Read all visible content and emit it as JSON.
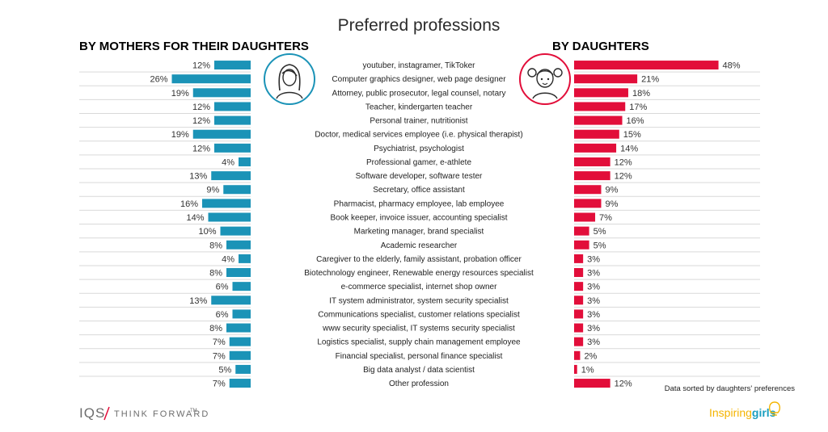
{
  "colors": {
    "mothers": "#1b93b7",
    "daughters": "#e20e3a",
    "divider": "#d9d9d9",
    "text": "#333333"
  },
  "icons": {
    "mother_icon": "woman-face-icon",
    "daughter_icon": "girl-face-icon",
    "inspiring_icon": "lightbulb-icon"
  },
  "logos": {
    "iqs": "IQS",
    "think_forward": "THINK FORWARD",
    "tm": "TM",
    "inspiring": "Inspiring",
    "girls": "girls"
  },
  "chart_data": {
    "type": "bar",
    "title": "Preferred professions",
    "note": "Data sorted by daughters' preferences",
    "unit": "%",
    "categories": [
      "youtuber, instagramer, TikToker",
      "Computer graphics designer, web page designer",
      "Attorney, public prosecutor, legal counsel, notary",
      "Teacher, kindergarten teacher",
      "Personal trainer, nutritionist",
      "Doctor, medical services employee (i.e. physical therapist)",
      "Psychiatrist, psychologist",
      "Professional gamer, e-athlete",
      "Software developer, software tester",
      "Secretary, office assistant",
      "Pharmacist, pharmacy employee, lab employee",
      "Book keeper, invoice issuer, accounting specialist",
      "Marketing manager, brand specialist",
      "Academic researcher",
      "Caregiver to the elderly, family assistant, probation officer",
      "Biotechnology engineer, Renewable energy resources specialist",
      "e-commerce specialist, internet shop owner",
      "IT system administrator, system security specialist",
      "Communications specialist, customer relations specialist",
      "www security specialist, IT systems security specialist",
      "Logistics specialist, supply chain management employee",
      "Financial specialist, personal finance specialist",
      "Big data analyst / data scientist",
      "Other profession"
    ],
    "series": [
      {
        "name": "BY MOTHERS FOR THEIR DAUGHTERS",
        "values": [
          12,
          26,
          19,
          12,
          12,
          19,
          12,
          4,
          13,
          9,
          16,
          14,
          10,
          8,
          4,
          8,
          6,
          13,
          6,
          8,
          7,
          7,
          5,
          7
        ]
      },
      {
        "name": "BY DAUGHTERS",
        "values": [
          48,
          21,
          18,
          17,
          16,
          15,
          14,
          12,
          12,
          9,
          9,
          7,
          5,
          5,
          3,
          3,
          3,
          3,
          3,
          3,
          3,
          2,
          1,
          12
        ]
      }
    ]
  }
}
